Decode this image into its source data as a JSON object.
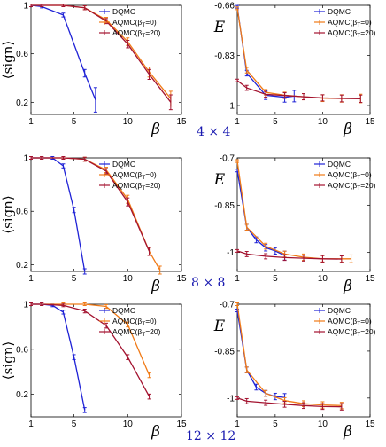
{
  "colors": {
    "DQMC": "#1f22d6",
    "AQMC0": "#f07a16",
    "AQMC20": "#a3122f"
  },
  "size_labels": [
    "4 × 4",
    "8 × 8",
    "12 × 12"
  ],
  "chart_data": [
    {
      "type": "line",
      "row": 0,
      "side": "left",
      "ylabel": "⟨sign⟩",
      "xlabel": "β",
      "xlim": [
        1,
        15
      ],
      "ylim": [
        0.1,
        1.0
      ],
      "xticks": [
        1,
        5,
        10,
        15
      ],
      "yticks": [
        0.2,
        0.6,
        1
      ],
      "legend": "top-right",
      "series": [
        {
          "name": "DQMC",
          "color_key": "DQMC",
          "x": [
            1,
            2,
            4,
            6,
            7
          ],
          "y": [
            1.0,
            0.99,
            0.92,
            0.44,
            0.22
          ],
          "err": [
            0,
            0,
            0.005,
            0.02,
            0.09
          ]
        },
        {
          "name": "AQMC(β_T=0)",
          "color_key": "AQMC0",
          "x": [
            1,
            2,
            4,
            6,
            8,
            10,
            12,
            14
          ],
          "y": [
            1.0,
            1.0,
            1.0,
            0.98,
            0.88,
            0.7,
            0.45,
            0.23
          ],
          "err": [
            0,
            0,
            0,
            0.005,
            0.01,
            0.02,
            0.03,
            0.05
          ]
        },
        {
          "name": "AQMC(β_T=20)",
          "color_key": "AQMC20",
          "x": [
            1,
            2,
            4,
            6,
            8,
            10,
            12,
            14
          ],
          "y": [
            1.0,
            1.0,
            1.0,
            0.98,
            0.87,
            0.68,
            0.43,
            0.2
          ],
          "err": [
            0,
            0,
            0,
            0.005,
            0.01,
            0.02,
            0.03,
            0.05
          ]
        }
      ]
    },
    {
      "type": "line",
      "row": 0,
      "side": "right",
      "ylabel": "E",
      "xlabel": "β",
      "xlim": [
        1,
        15
      ],
      "ylim": [
        -1.03,
        -0.66
      ],
      "xticks": [
        1,
        5,
        10,
        15
      ],
      "yticks": [
        -0.66,
        -0.83,
        -1
      ],
      "ytick_labels": [
        "-0.66",
        "-0.83",
        "-1"
      ],
      "legend": "top-right",
      "series": [
        {
          "name": "DQMC",
          "color_key": "DQMC",
          "x": [
            1,
            2,
            4,
            6,
            7
          ],
          "y": [
            -0.665,
            -0.89,
            -0.965,
            -0.972,
            -0.968
          ],
          "err": [
            0,
            0.005,
            0.01,
            0.012,
            0.015
          ]
        },
        {
          "name": "AQMC(β_T=0)",
          "color_key": "AQMC0",
          "x": [
            1,
            2,
            4,
            6,
            8,
            10,
            12,
            14
          ],
          "y": [
            -0.67,
            -0.88,
            -0.955,
            -0.965,
            -0.97,
            -0.975,
            -0.976,
            -0.976
          ],
          "err": [
            0,
            0.005,
            0.005,
            0.006,
            0.006,
            0.007,
            0.008,
            0.01
          ]
        },
        {
          "name": "AQMC(β_T=20)",
          "color_key": "AQMC20",
          "x": [
            1,
            2,
            4,
            6,
            8,
            10,
            12,
            14
          ],
          "y": [
            -0.915,
            -0.94,
            -0.962,
            -0.966,
            -0.97,
            -0.974,
            -0.976,
            -0.977
          ],
          "err": [
            0,
            0.004,
            0.005,
            0.005,
            0.006,
            0.006,
            0.007,
            0.008
          ]
        }
      ]
    },
    {
      "type": "line",
      "row": 1,
      "side": "left",
      "ylabel": "⟨sign⟩",
      "xlabel": "β",
      "xlim": [
        1,
        15
      ],
      "ylim": [
        0.15,
        1.0
      ],
      "xticks": [
        1,
        5,
        10,
        15
      ],
      "yticks": [
        0.2,
        0.6,
        1
      ],
      "legend": "top-right",
      "series": [
        {
          "name": "DQMC",
          "color_key": "DQMC",
          "x": [
            1,
            2,
            3,
            4,
            5,
            6
          ],
          "y": [
            1.0,
            1.0,
            1.0,
            0.94,
            0.61,
            0.15
          ],
          "err": [
            0,
            0,
            0,
            0.005,
            0.01,
            0.01
          ]
        },
        {
          "name": "AQMC(β_T=0)",
          "color_key": "AQMC0",
          "x": [
            1,
            2,
            4,
            6,
            8,
            10,
            12,
            13
          ],
          "y": [
            1.0,
            1.0,
            1.0,
            0.99,
            0.91,
            0.69,
            0.3,
            0.16
          ],
          "err": [
            0,
            0,
            0,
            0.005,
            0.01,
            0.02,
            0.02,
            0.02
          ]
        },
        {
          "name": "AQMC(β_T=20)",
          "color_key": "AQMC20",
          "x": [
            1,
            2,
            4,
            6,
            8,
            10,
            12
          ],
          "y": [
            1.0,
            1.0,
            1.0,
            0.99,
            0.9,
            0.67,
            0.3
          ],
          "err": [
            0,
            0,
            0,
            0.005,
            0.01,
            0.02,
            0.02
          ]
        }
      ]
    },
    {
      "type": "line",
      "row": 1,
      "side": "right",
      "ylabel": "E",
      "xlabel": "β",
      "xlim": [
        1,
        15
      ],
      "ylim": [
        -1.06,
        -0.7
      ],
      "xticks": [
        1,
        5,
        10,
        15
      ],
      "yticks": [
        -0.7,
        -0.85,
        -1
      ],
      "ytick_labels": [
        "-0.7",
        "-0.85",
        "-1"
      ],
      "legend": "top-right",
      "series": [
        {
          "name": "DQMC",
          "color_key": "DQMC",
          "x": [
            1,
            2,
            3,
            4,
            5,
            6
          ],
          "y": [
            -0.74,
            -0.92,
            -0.96,
            -0.985,
            -0.995,
            -1.01
          ],
          "err": [
            0,
            0.005,
            0.005,
            0.006,
            0.006,
            0.01
          ]
        },
        {
          "name": "AQMC(β_T=0)",
          "color_key": "AQMC0",
          "x": [
            1,
            2,
            4,
            6,
            8,
            10,
            12,
            13
          ],
          "y": [
            -0.71,
            -0.92,
            -0.98,
            -1.005,
            -1.015,
            -1.02,
            -1.02,
            -1.02
          ],
          "err": [
            0,
            0.005,
            0.005,
            0.005,
            0.006,
            0.006,
            0.007,
            0.008
          ]
        },
        {
          "name": "AQMC(β_T=20)",
          "color_key": "AQMC20",
          "x": [
            1,
            2,
            4,
            6,
            8,
            10,
            12
          ],
          "y": [
            -0.995,
            -1.005,
            -1.012,
            -1.016,
            -1.018,
            -1.02,
            -1.021
          ],
          "err": [
            0,
            0.004,
            0.004,
            0.005,
            0.005,
            0.006,
            0.006
          ]
        }
      ]
    },
    {
      "type": "line",
      "row": 2,
      "side": "left",
      "ylabel": "⟨sign⟩",
      "xlabel": "β",
      "xlim": [
        1,
        15
      ],
      "ylim": [
        0.0,
        1.0
      ],
      "xticks": [
        1,
        5,
        10,
        15
      ],
      "yticks": [
        0.2,
        0.6,
        1
      ],
      "legend": "top-right",
      "series": [
        {
          "name": "DQMC",
          "color_key": "DQMC",
          "x": [
            1,
            2,
            3,
            4,
            5,
            6
          ],
          "y": [
            1.0,
            1.0,
            0.99,
            0.93,
            0.53,
            0.06
          ],
          "err": [
            0,
            0,
            0,
            0.005,
            0.01,
            0.01
          ]
        },
        {
          "name": "AQMC(β_T=0)",
          "color_key": "AQMC0",
          "x": [
            1,
            2,
            4,
            6,
            8,
            10,
            12
          ],
          "y": [
            1.0,
            1.0,
            1.0,
            1.0,
            0.98,
            0.82,
            0.37
          ],
          "err": [
            0,
            0,
            0,
            0,
            0.005,
            0.01,
            0.01
          ]
        },
        {
          "name": "AQMC(β_T=20)",
          "color_key": "AQMC20",
          "x": [
            1,
            2,
            4,
            6,
            8,
            10,
            12
          ],
          "y": [
            1.0,
            1.0,
            0.99,
            0.94,
            0.81,
            0.53,
            0.18
          ],
          "err": [
            0,
            0,
            0,
            0.005,
            0.01,
            0.01,
            0.01
          ]
        }
      ]
    },
    {
      "type": "line",
      "row": 2,
      "side": "right",
      "ylabel": "E",
      "xlabel": "β",
      "xlim": [
        1,
        15
      ],
      "ylim": [
        -1.06,
        -0.7
      ],
      "xticks": [
        1,
        5,
        10,
        15
      ],
      "yticks": [
        -0.7,
        -0.85,
        -1
      ],
      "ytick_labels": [
        "-0.7",
        "-0.85",
        "-1"
      ],
      "legend": "top-right",
      "series": [
        {
          "name": "DQMC",
          "color_key": "DQMC",
          "x": [
            1,
            2,
            3,
            4,
            5,
            6
          ],
          "y": [
            -0.72,
            -0.91,
            -0.965,
            -0.985,
            -0.995,
            -0.998
          ],
          "err": [
            0,
            0.005,
            0.005,
            0.005,
            0.006,
            0.008
          ]
        },
        {
          "name": "AQMC(β_T=0)",
          "color_key": "AQMC0",
          "x": [
            1,
            2,
            4,
            6,
            8,
            10,
            12
          ],
          "y": [
            -0.7,
            -0.91,
            -0.985,
            -1.008,
            -1.018,
            -1.022,
            -1.024
          ],
          "err": [
            0,
            0.005,
            0.005,
            0.005,
            0.005,
            0.006,
            0.006
          ]
        },
        {
          "name": "AQMC(β_T=20)",
          "color_key": "AQMC20",
          "x": [
            1,
            2,
            4,
            6,
            8,
            10,
            12
          ],
          "y": [
            -1.0,
            -1.01,
            -1.015,
            -1.02,
            -1.024,
            -1.027,
            -1.028
          ],
          "err": [
            0,
            0.004,
            0.004,
            0.005,
            0.005,
            0.005,
            0.006
          ]
        }
      ]
    }
  ]
}
